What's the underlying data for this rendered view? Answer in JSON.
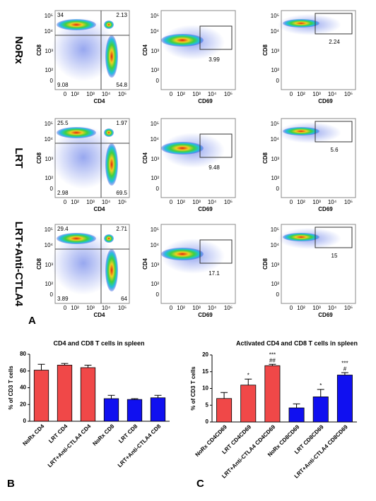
{
  "panel_labels": [
    "A",
    "B",
    "C"
  ],
  "flow": {
    "x_ticks": [
      "0",
      "10²",
      "10³",
      "10⁴",
      "10⁵"
    ],
    "y_ticks": [
      "10⁵",
      "10⁴",
      "10³",
      "10²",
      "0"
    ],
    "rows": [
      {
        "label": "NoRx",
        "panels": [
          {
            "x_label": "CD4",
            "y_label": "CD8",
            "quadrants": [
              "34",
              "2.13",
              "9.08",
              "54.8"
            ]
          },
          {
            "x_label": "CD69",
            "y_label": "CD4",
            "gate": "3.99"
          },
          {
            "x_label": "CD69",
            "y_label": "CD8",
            "gate": "2.24"
          }
        ]
      },
      {
        "label": "LRT",
        "panels": [
          {
            "x_label": "CD4",
            "y_label": "CD8",
            "quadrants": [
              "25.5",
              "1.97",
              "2.98",
              "69.5"
            ]
          },
          {
            "x_label": "CD69",
            "y_label": "CD4",
            "gate": "9.48"
          },
          {
            "x_label": "CD69",
            "y_label": "CD8",
            "gate": "5.6"
          }
        ]
      },
      {
        "label": "LRT+Anti-CTLA4",
        "panels": [
          {
            "x_label": "CD4",
            "y_label": "CD8",
            "quadrants": [
              "29.4",
              "2.71",
              "3.89",
              "64"
            ]
          },
          {
            "x_label": "CD69",
            "y_label": "CD4",
            "gate": "17.1"
          },
          {
            "x_label": "CD69",
            "y_label": "CD8",
            "gate": "15"
          }
        ]
      }
    ]
  },
  "chart_data": [
    {
      "type": "bar",
      "title": "CD4 and CD8 T cells in spleen",
      "y_label": "% of CD3 T cells",
      "categories": [
        "NoRx CD4",
        "LRT CD4",
        "LRT+Anti-CTLA4 CD4",
        "NoRx CD8",
        "LRT CD8",
        "LRT+Anti-CTLA4 CD8"
      ],
      "values": [
        61,
        67,
        64,
        27,
        26,
        28
      ],
      "errors": [
        7,
        2,
        3,
        4,
        1,
        3
      ],
      "colors": [
        "#f04848",
        "#f04848",
        "#f04848",
        "#1010f0",
        "#1010f0",
        "#1010f0"
      ],
      "ylim": [
        0,
        80
      ],
      "yticks": [
        0,
        20,
        40,
        60,
        80
      ]
    },
    {
      "type": "bar",
      "title": "Activated CD4 and CD8 T cells in spleen",
      "y_label": "% of CD3 T cells",
      "categories": [
        "NoRx CD4CD69",
        "LRT CD4CD69",
        "LRT+Anti-CTLA4 CD4CD69",
        "NoRx CD8CD69",
        "LRT CD8CD69",
        "LRT+Anti-CTLA4 CD8CD69"
      ],
      "values": [
        7,
        11,
        16.8,
        4.2,
        7.5,
        14
      ],
      "errors": [
        1.8,
        1.8,
        0.4,
        1.2,
        2.2,
        0.7
      ],
      "annotations": [
        null,
        [
          "*"
        ],
        [
          "***",
          "##"
        ],
        null,
        [
          "*"
        ],
        [
          "***",
          "#"
        ]
      ],
      "colors": [
        "#f04848",
        "#f04848",
        "#f04848",
        "#1010f0",
        "#1010f0",
        "#1010f0"
      ],
      "ylim": [
        0,
        20
      ],
      "yticks": [
        0,
        5,
        10,
        15,
        20
      ]
    }
  ]
}
